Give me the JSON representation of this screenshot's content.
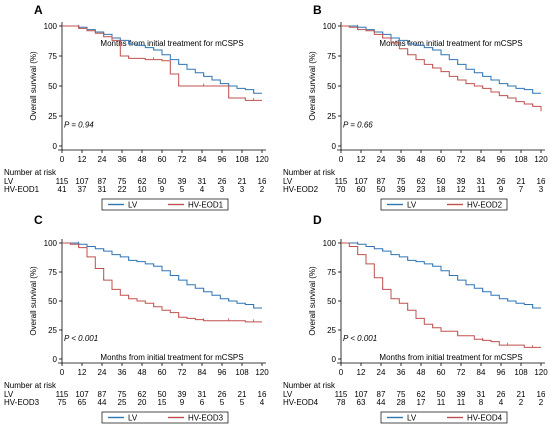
{
  "colors": {
    "lv": "#2E75B6",
    "hv": "#C0504D"
  },
  "chart_data": [
    {
      "panel": "A",
      "type": "line",
      "subtype": "kaplan-meier",
      "xlabel": "Months from initial treatment for mCSPS",
      "ylabel": "Overall survival (%)",
      "xlim": [
        0,
        120
      ],
      "ylim": [
        0,
        100
      ],
      "xticks": [
        "0",
        "12",
        "24",
        "36",
        "48",
        "60",
        "72",
        "84",
        "96",
        "108",
        "120"
      ],
      "yticks": [
        "0",
        "25",
        "50",
        "75",
        "100"
      ],
      "pvalue": "P = 0.94",
      "risk_title": "Number at risk",
      "series": [
        {
          "name": "LV",
          "color": "#2E75B6",
          "x": [
            0,
            5,
            10,
            15,
            20,
            25,
            30,
            35,
            40,
            45,
            50,
            55,
            60,
            65,
            70,
            75,
            80,
            85,
            90,
            95,
            100,
            105,
            110,
            115,
            120
          ],
          "y": [
            100,
            100,
            99,
            97,
            95,
            93,
            90,
            88,
            85,
            84,
            82,
            80,
            76,
            72,
            68,
            64,
            61,
            58,
            55,
            52,
            50,
            48,
            47,
            44,
            44
          ],
          "risk": [
            "115",
            "107",
            "87",
            "75",
            "62",
            "50",
            "39",
            "31",
            "26",
            "21",
            "16"
          ]
        },
        {
          "name": "HV-EOD1",
          "color": "#C0504D",
          "x": [
            0,
            5,
            10,
            15,
            20,
            25,
            30,
            35,
            40,
            45,
            50,
            55,
            60,
            65,
            70,
            75,
            80,
            85,
            90,
            95,
            100,
            105,
            110,
            115,
            120
          ],
          "y": [
            100,
            100,
            98,
            96,
            94,
            91,
            88,
            75,
            73,
            73,
            72,
            72,
            71,
            60,
            50,
            50,
            50,
            50,
            50,
            50,
            40,
            40,
            38,
            38,
            38
          ],
          "risk": [
            "41",
            "37",
            "31",
            "22",
            "10",
            "9",
            "5",
            "4",
            "3",
            "3",
            "2"
          ]
        }
      ]
    },
    {
      "panel": "B",
      "type": "line",
      "subtype": "kaplan-meier",
      "xlabel": "Months from initial treatment for mCSPS",
      "ylabel": "Overall survival (%)",
      "xlim": [
        0,
        120
      ],
      "ylim": [
        0,
        100
      ],
      "xticks": [
        "0",
        "12",
        "24",
        "36",
        "48",
        "60",
        "72",
        "84",
        "96",
        "108",
        "120"
      ],
      "yticks": [
        "0",
        "25",
        "50",
        "75",
        "100"
      ],
      "pvalue": "P = 0.66",
      "risk_title": "Number at risk",
      "series": [
        {
          "name": "LV",
          "color": "#2E75B6",
          "x": [
            0,
            5,
            10,
            15,
            20,
            25,
            30,
            35,
            40,
            45,
            50,
            55,
            60,
            65,
            70,
            75,
            80,
            85,
            90,
            95,
            100,
            105,
            110,
            115,
            120
          ],
          "y": [
            100,
            100,
            99,
            97,
            95,
            93,
            90,
            88,
            85,
            84,
            82,
            80,
            76,
            72,
            68,
            64,
            61,
            58,
            55,
            52,
            50,
            48,
            47,
            44,
            44
          ],
          "risk": [
            "115",
            "107",
            "87",
            "75",
            "62",
            "50",
            "39",
            "31",
            "26",
            "21",
            "16"
          ]
        },
        {
          "name": "HV-EOD2",
          "color": "#C0504D",
          "x": [
            0,
            5,
            10,
            15,
            20,
            25,
            30,
            35,
            40,
            45,
            50,
            55,
            60,
            65,
            70,
            75,
            80,
            85,
            90,
            95,
            100,
            105,
            110,
            115,
            120
          ],
          "y": [
            100,
            99,
            97,
            96,
            93,
            90,
            86,
            81,
            76,
            72,
            68,
            65,
            62,
            58,
            55,
            52,
            50,
            48,
            45,
            42,
            40,
            37,
            35,
            33,
            29
          ],
          "risk": [
            "70",
            "60",
            "50",
            "39",
            "23",
            "18",
            "12",
            "11",
            "9",
            "7",
            "3"
          ]
        }
      ]
    },
    {
      "panel": "C",
      "type": "line",
      "subtype": "kaplan-meier",
      "xlabel": "Months from initial treatment for mCSPS",
      "ylabel": "Overall survival (%)",
      "xlim": [
        0,
        120
      ],
      "ylim": [
        0,
        100
      ],
      "xticks": [
        "0",
        "12",
        "24",
        "36",
        "48",
        "60",
        "72",
        "84",
        "96",
        "108",
        "120"
      ],
      "yticks": [
        "0",
        "25",
        "50",
        "75",
        "100"
      ],
      "pvalue": "P < 0.001",
      "risk_title": "Number at risk",
      "series": [
        {
          "name": "LV",
          "color": "#2E75B6",
          "x": [
            0,
            5,
            10,
            15,
            20,
            25,
            30,
            35,
            40,
            45,
            50,
            55,
            60,
            65,
            70,
            75,
            80,
            85,
            90,
            95,
            100,
            105,
            110,
            115,
            120
          ],
          "y": [
            100,
            100,
            99,
            97,
            95,
            93,
            90,
            88,
            85,
            84,
            82,
            80,
            76,
            72,
            68,
            64,
            61,
            58,
            55,
            52,
            50,
            48,
            47,
            44,
            44
          ],
          "risk": [
            "115",
            "107",
            "87",
            "75",
            "62",
            "50",
            "39",
            "31",
            "26",
            "21",
            "16"
          ]
        },
        {
          "name": "HV-EOD3",
          "color": "#C0504D",
          "x": [
            0,
            5,
            10,
            15,
            20,
            25,
            30,
            35,
            40,
            45,
            50,
            55,
            60,
            65,
            70,
            75,
            80,
            85,
            90,
            95,
            100,
            105,
            110,
            115,
            120
          ],
          "y": [
            100,
            99,
            96,
            88,
            78,
            68,
            60,
            55,
            52,
            50,
            48,
            45,
            42,
            40,
            36,
            35,
            34,
            33,
            33,
            33,
            33,
            33,
            32,
            32,
            32
          ],
          "risk": [
            "75",
            "65",
            "44",
            "25",
            "20",
            "15",
            "9",
            "6",
            "5",
            "5",
            "4"
          ]
        }
      ]
    },
    {
      "panel": "D",
      "type": "line",
      "subtype": "kaplan-meier",
      "xlabel": "Months from initial treatment for mCSPS",
      "ylabel": "Overall survival (%)",
      "xlim": [
        0,
        120
      ],
      "ylim": [
        0,
        100
      ],
      "xticks": [
        "0",
        "12",
        "24",
        "36",
        "48",
        "60",
        "72",
        "84",
        "96",
        "108",
        "120"
      ],
      "yticks": [
        "0",
        "25",
        "50",
        "75",
        "100"
      ],
      "pvalue": "P < 0.001",
      "risk_title": "Number at risk",
      "series": [
        {
          "name": "LV",
          "color": "#2E75B6",
          "x": [
            0,
            5,
            10,
            15,
            20,
            25,
            30,
            35,
            40,
            45,
            50,
            55,
            60,
            65,
            70,
            75,
            80,
            85,
            90,
            95,
            100,
            105,
            110,
            115,
            120
          ],
          "y": [
            100,
            100,
            99,
            97,
            95,
            93,
            90,
            88,
            85,
            84,
            82,
            80,
            76,
            72,
            68,
            64,
            61,
            58,
            55,
            52,
            50,
            48,
            47,
            44,
            44
          ],
          "risk": [
            "115",
            "107",
            "87",
            "75",
            "62",
            "50",
            "39",
            "31",
            "26",
            "21",
            "16"
          ]
        },
        {
          "name": "HV-EOD4",
          "color": "#C0504D",
          "x": [
            0,
            5,
            10,
            15,
            20,
            25,
            30,
            35,
            40,
            45,
            50,
            55,
            60,
            65,
            70,
            75,
            80,
            85,
            90,
            95,
            100,
            105,
            110,
            115,
            120
          ],
          "y": [
            100,
            97,
            90,
            82,
            70,
            60,
            52,
            48,
            42,
            35,
            30,
            27,
            24,
            24,
            20,
            20,
            17,
            16,
            15,
            12,
            12,
            12,
            10,
            10,
            10
          ],
          "risk": [
            "78",
            "63",
            "44",
            "28",
            "17",
            "11",
            "11",
            "8",
            "4",
            "2",
            "2"
          ]
        }
      ]
    }
  ]
}
